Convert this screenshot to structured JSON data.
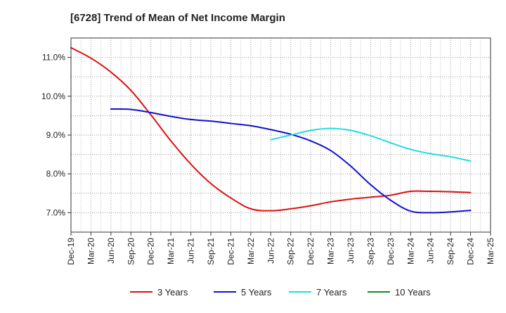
{
  "chart_data": {
    "type": "line",
    "title": "[6728]  Trend of Mean of Net Income Margin",
    "xlabel": "",
    "ylabel": "",
    "x": [
      "Dec-19",
      "Mar-20",
      "Jun-20",
      "Sep-20",
      "Dec-20",
      "Mar-21",
      "Jun-21",
      "Sep-21",
      "Dec-21",
      "Mar-22",
      "Jun-22",
      "Sep-22",
      "Dec-22",
      "Mar-23",
      "Jun-23",
      "Sep-23",
      "Dec-23",
      "Mar-24",
      "Jun-24",
      "Sep-24",
      "Dec-24",
      "Mar-25"
    ],
    "ylim": [
      6.5,
      11.5
    ],
    "yticks": [
      7.0,
      8.0,
      9.0,
      10.0,
      11.0
    ],
    "ytick_labels": [
      "7.0%",
      "8.0%",
      "9.0%",
      "10.0%",
      "11.0%"
    ],
    "grid": true,
    "legend_position": "bottom",
    "series": [
      {
        "name": "3 Years",
        "color": "#dd1111",
        "values": [
          11.25,
          10.98,
          10.62,
          10.15,
          9.52,
          8.85,
          8.25,
          7.75,
          7.38,
          7.1,
          7.05,
          7.1,
          7.18,
          7.28,
          7.35,
          7.4,
          7.45,
          7.55,
          7.55,
          7.54,
          7.52,
          null
        ]
      },
      {
        "name": "5 Years",
        "color": "#1111cc",
        "values": [
          null,
          null,
          9.67,
          9.66,
          9.58,
          9.48,
          9.4,
          9.36,
          9.3,
          9.24,
          9.14,
          9.02,
          8.85,
          8.6,
          8.2,
          7.72,
          7.32,
          7.04,
          7.0,
          7.02,
          7.06,
          null
        ]
      },
      {
        "name": "7 Years",
        "color": "#22dddd",
        "values": [
          null,
          null,
          null,
          null,
          null,
          null,
          null,
          null,
          null,
          null,
          8.88,
          9.0,
          9.12,
          9.17,
          9.12,
          8.98,
          8.8,
          8.63,
          8.52,
          8.44,
          8.33,
          null
        ]
      },
      {
        "name": "10 Years",
        "color": "#228822",
        "values": [
          null,
          null,
          null,
          null,
          null,
          null,
          null,
          null,
          null,
          null,
          null,
          null,
          null,
          null,
          null,
          null,
          null,
          null,
          null,
          null,
          null,
          null
        ]
      }
    ]
  }
}
